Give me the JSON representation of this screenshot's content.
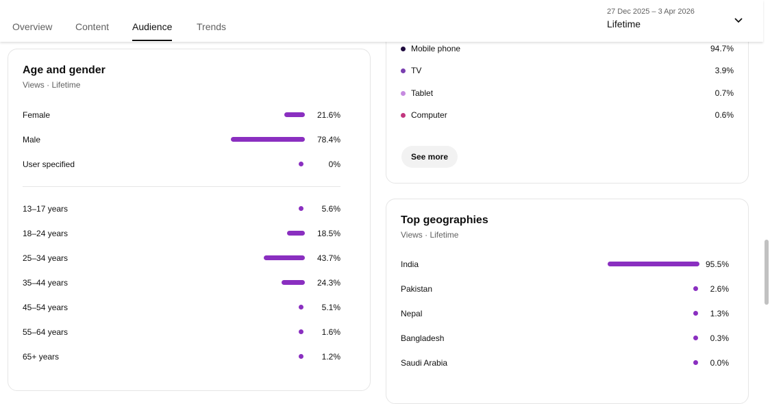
{
  "tabs": [
    {
      "label": "Overview"
    },
    {
      "label": "Content"
    },
    {
      "label": "Audience",
      "active": true
    },
    {
      "label": "Trends"
    }
  ],
  "date_picker": {
    "range": "27 Dec 2025 – 3 Apr 2026",
    "period": "Lifetime",
    "icon": "chevron-down-icon"
  },
  "age_gender": {
    "title": "Age and gender",
    "subtitle": "Views · Lifetime",
    "gender": [
      {
        "label": "Female",
        "value": 21.6,
        "text": "21.6%"
      },
      {
        "label": "Male",
        "value": 78.4,
        "text": "78.4%"
      },
      {
        "label": "User specified",
        "value": 0,
        "text": "0%"
      }
    ],
    "ages": [
      {
        "label": "13–17 years",
        "value": 5.6,
        "text": "5.6%"
      },
      {
        "label": "18–24 years",
        "value": 18.5,
        "text": "18.5%"
      },
      {
        "label": "25–34 years",
        "value": 43.7,
        "text": "43.7%"
      },
      {
        "label": "35–44 years",
        "value": 24.3,
        "text": "24.3%"
      },
      {
        "label": "45–54 years",
        "value": 5.1,
        "text": "5.1%"
      },
      {
        "label": "55–64 years",
        "value": 1.6,
        "text": "1.6%"
      },
      {
        "label": "65+ years",
        "value": 1.2,
        "text": "1.2%"
      }
    ]
  },
  "devices": {
    "items": [
      {
        "label": "Mobile phone",
        "text": "94.7%",
        "color": "#1f0b3f"
      },
      {
        "label": "TV",
        "text": "3.9%",
        "color": "#7a3fb0"
      },
      {
        "label": "Tablet",
        "text": "0.7%",
        "color": "#c68be0"
      },
      {
        "label": "Computer",
        "text": "0.6%",
        "color": "#c2377f"
      }
    ],
    "see_more": "See more"
  },
  "geographies": {
    "title": "Top geographies",
    "subtitle": "Views · Lifetime",
    "items": [
      {
        "label": "India",
        "value": 95.5,
        "text": "95.5%"
      },
      {
        "label": "Pakistan",
        "value": 2.6,
        "text": "2.6%"
      },
      {
        "label": "Nepal",
        "value": 1.3,
        "text": "1.3%"
      },
      {
        "label": "Bangladesh",
        "value": 0.3,
        "text": "0.3%"
      },
      {
        "label": "Saudi Arabia",
        "value": 0.0,
        "text": "0.0%"
      }
    ]
  },
  "colors": {
    "bar": "#8a2fc0"
  }
}
